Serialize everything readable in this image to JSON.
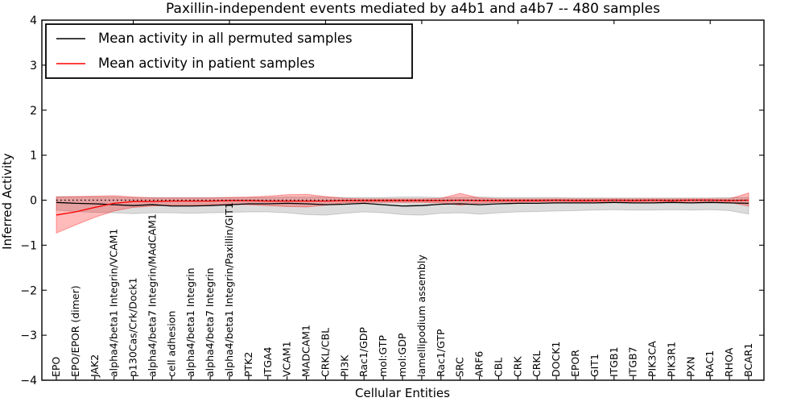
{
  "title": "Paxillin-independent events mediated by a4b1 and a4b7 -- 480 samples",
  "axes": {
    "ylabel": "Inferred Activity",
    "xlabel": "Cellular Entities",
    "yticks": [
      "4",
      "3",
      "2",
      "1",
      "0",
      "−1",
      "−2",
      "−3",
      "−4"
    ],
    "ytick_values": [
      4,
      3,
      2,
      1,
      0,
      -1,
      -2,
      -3,
      -4
    ],
    "ylim": [
      -4,
      4
    ]
  },
  "legend": {
    "items": [
      {
        "key": "permuted",
        "label": "Mean activity in all permuted samples",
        "color": "#000000"
      },
      {
        "key": "patient",
        "label": "Mean activity in patient samples",
        "color": "#ff0000"
      }
    ]
  },
  "chart_data": {
    "type": "line",
    "title": "Paxillin-independent events mediated by a4b1 and a4b7 -- 480 samples",
    "xlabel": "Cellular Entities",
    "ylabel": "Inferred Activity",
    "ylim": [
      -4,
      4
    ],
    "grid": false,
    "legend_position": "upper left",
    "zero_line": 0,
    "categories": [
      "EPO",
      "EPO/EPOR (dimer)",
      "JAK2",
      "alpha4/beta1 Integrin/VCAM1",
      "p130Cas/Crk/Dock1",
      "alpha4/beta7 Integrin/MAdCAM1",
      "cell adhesion",
      "alpha4/beta1 Integrin",
      "alpha4/beta7 Integrin",
      "alpha4/beta1 Integrin/Paxillin/GIT1",
      "PTK2",
      "ITGA4",
      "VCAM1",
      "MADCAM1",
      "CRKL/CBL",
      "PI3K",
      "Rac1/GDP",
      "mol:GTP",
      "mol:GDP",
      "lamellipodium assembly",
      "Rac1/GTP",
      "SRC",
      "ARF6",
      "CBL",
      "CRK",
      "CRKL",
      "DOCK1",
      "EPOR",
      "GIT1",
      "ITGB1",
      "ITGB7",
      "PIK3CA",
      "PIK3R1",
      "PXN",
      "RAC1",
      "RHOA",
      "BCAR1"
    ],
    "series": [
      {
        "key": "permuted",
        "name": "Mean activity in all permuted samples",
        "color": "#000000",
        "values": [
          -0.05,
          -0.07,
          -0.08,
          -0.1,
          -0.12,
          -0.1,
          -0.13,
          -0.13,
          -0.12,
          -0.1,
          -0.08,
          -0.08,
          -0.07,
          -0.08,
          -0.1,
          -0.09,
          -0.07,
          -0.1,
          -0.13,
          -0.12,
          -0.09,
          -0.08,
          -0.1,
          -0.08,
          -0.07,
          -0.07,
          -0.06,
          -0.06,
          -0.06,
          -0.05,
          -0.06,
          -0.06,
          -0.05,
          -0.06,
          -0.05,
          -0.06,
          -0.07
        ]
      },
      {
        "key": "patient",
        "name": "Mean activity in patient samples",
        "color": "#ff0000",
        "values": [
          -0.33,
          -0.26,
          -0.16,
          -0.07,
          -0.03,
          -0.03,
          -0.02,
          -0.02,
          -0.02,
          -0.01,
          -0.01,
          -0.02,
          -0.02,
          -0.02,
          -0.02,
          -0.01,
          -0.01,
          -0.01,
          -0.01,
          -0.01,
          -0.01,
          0.0,
          -0.01,
          -0.01,
          -0.01,
          -0.01,
          0.0,
          -0.01,
          -0.01,
          0.0,
          -0.01,
          0.0,
          -0.01,
          0.0,
          0.0,
          -0.01,
          0.0
        ]
      }
    ],
    "bands": [
      {
        "key": "permuted-range",
        "name": "Permuted samples range",
        "color": "#808080",
        "opacity": 0.28,
        "upper": [
          0.08,
          0.08,
          0.07,
          0.07,
          0.06,
          0.06,
          0.06,
          0.06,
          0.06,
          0.06,
          0.06,
          0.06,
          0.07,
          0.07,
          0.07,
          0.06,
          0.06,
          0.06,
          0.07,
          0.07,
          0.06,
          0.06,
          0.07,
          0.06,
          0.06,
          0.06,
          0.06,
          0.05,
          0.05,
          0.05,
          0.05,
          0.05,
          0.05,
          0.05,
          0.05,
          0.06,
          0.06
        ],
        "lower": [
          -0.22,
          -0.25,
          -0.27,
          -0.28,
          -0.3,
          -0.28,
          -0.28,
          -0.29,
          -0.28,
          -0.27,
          -0.26,
          -0.26,
          -0.28,
          -0.32,
          -0.33,
          -0.29,
          -0.26,
          -0.28,
          -0.32,
          -0.33,
          -0.29,
          -0.28,
          -0.31,
          -0.28,
          -0.26,
          -0.25,
          -0.24,
          -0.23,
          -0.22,
          -0.21,
          -0.22,
          -0.22,
          -0.21,
          -0.22,
          -0.21,
          -0.23,
          -0.31
        ]
      },
      {
        "key": "patient-range",
        "name": "Patient samples range",
        "color": "#ff0000",
        "opacity": 0.27,
        "upper": [
          0.07,
          0.08,
          0.09,
          0.1,
          0.07,
          0.05,
          0.05,
          0.05,
          0.05,
          0.06,
          0.07,
          0.09,
          0.12,
          0.13,
          0.08,
          0.04,
          0.03,
          0.03,
          0.03,
          0.03,
          0.04,
          0.15,
          0.05,
          0.03,
          0.03,
          0.03,
          0.03,
          0.03,
          0.03,
          0.03,
          0.03,
          0.03,
          0.03,
          0.03,
          0.03,
          0.03,
          0.16
        ],
        "lower": [
          -0.73,
          -0.55,
          -0.38,
          -0.24,
          -0.16,
          -0.13,
          -0.11,
          -0.11,
          -0.1,
          -0.09,
          -0.1,
          -0.12,
          -0.14,
          -0.15,
          -0.11,
          -0.06,
          -0.05,
          -0.05,
          -0.05,
          -0.05,
          -0.06,
          -0.11,
          -0.07,
          -0.05,
          -0.05,
          -0.04,
          -0.04,
          -0.04,
          -0.04,
          -0.04,
          -0.04,
          -0.04,
          -0.04,
          -0.04,
          -0.04,
          -0.05,
          -0.13
        ]
      }
    ]
  }
}
